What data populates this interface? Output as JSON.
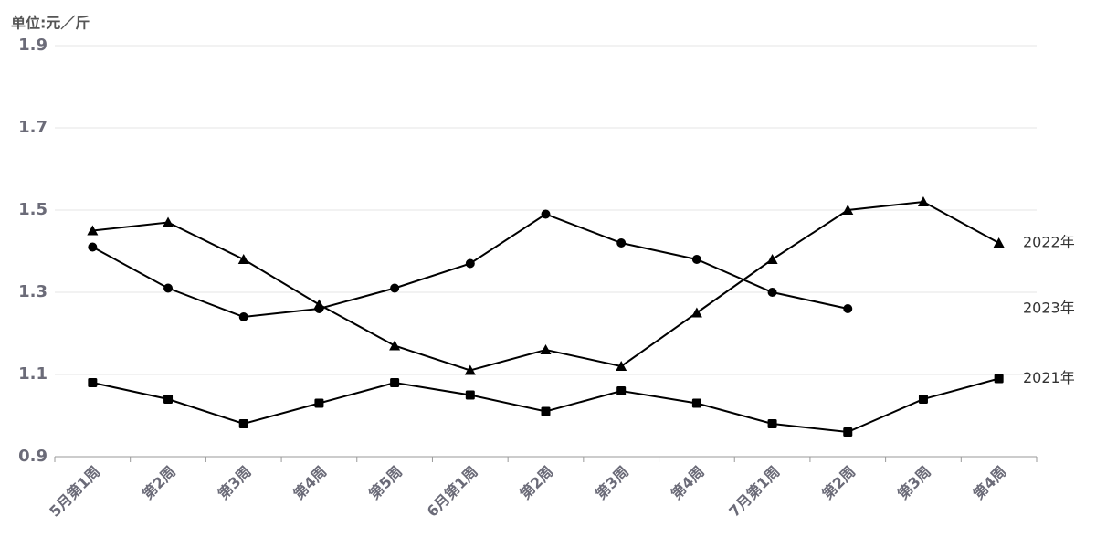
{
  "chart_data": {
    "type": "line",
    "y_label": "单位:元／斤",
    "categories": [
      "5月第1周",
      "第2周",
      "第3周",
      "第4周",
      "第5周",
      "6月第1周",
      "第2周",
      "第3周",
      "第4周",
      "7月第1周",
      "第2周",
      "第3周",
      "第4周"
    ],
    "series": [
      {
        "name": "2022年",
        "color": "#000000",
        "marker": "triangle",
        "values": [
          1.45,
          1.47,
          1.38,
          1.27,
          1.17,
          1.11,
          1.16,
          1.12,
          1.25,
          1.38,
          1.5,
          1.52,
          1.42
        ]
      },
      {
        "name": "2023年",
        "color": "#000000",
        "marker": "circle",
        "values": [
          1.41,
          1.31,
          1.24,
          1.26,
          1.31,
          1.37,
          1.49,
          1.42,
          1.38,
          1.3,
          1.26,
          null,
          null
        ]
      },
      {
        "name": "2021年",
        "color": "#000000",
        "marker": "square",
        "values": [
          1.08,
          1.04,
          0.98,
          1.03,
          1.08,
          1.05,
          1.01,
          1.06,
          1.03,
          0.98,
          0.96,
          1.04,
          1.09
        ]
      }
    ],
    "ylim": [
      0.9,
      1.9
    ],
    "yticks": [
      0.9,
      1.1,
      1.3,
      1.5,
      1.7,
      1.9
    ],
    "grid": true
  }
}
